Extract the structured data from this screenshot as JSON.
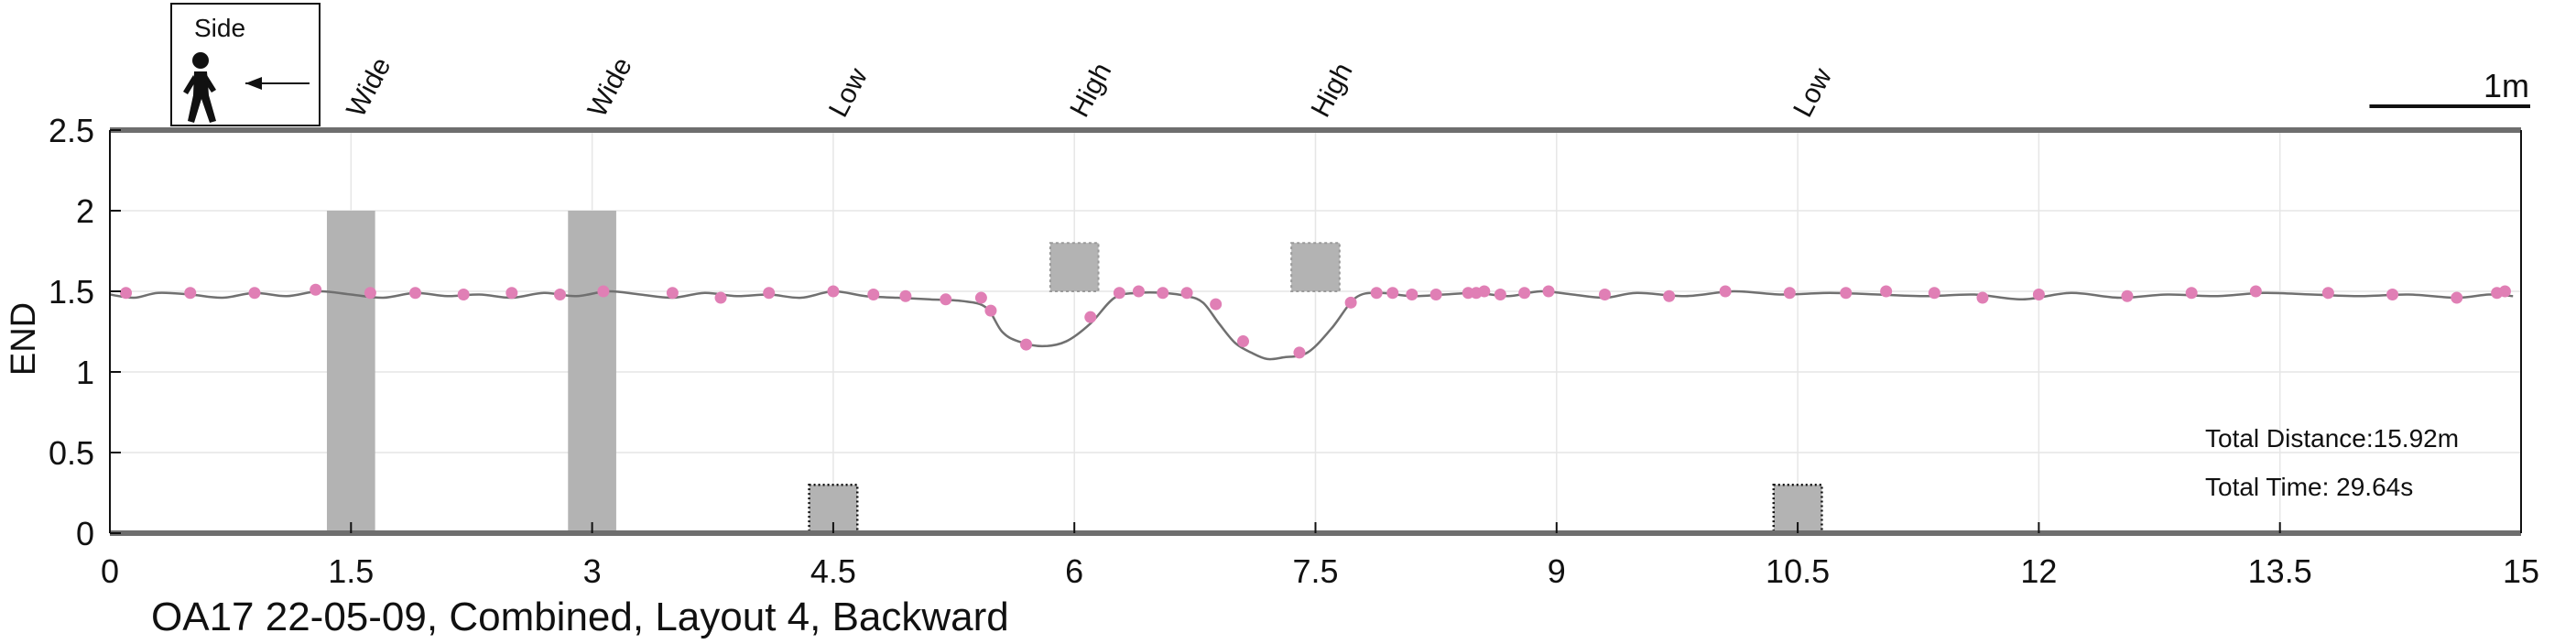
{
  "chart_data": {
    "type": "line",
    "ylabel": "END",
    "xlim": [
      0,
      15
    ],
    "ylim": [
      0,
      2.5
    ],
    "x_ticks": [
      "0",
      "1.5",
      "3",
      "4.5",
      "6",
      "7.5",
      "9",
      "10.5",
      "12",
      "13.5",
      "15"
    ],
    "y_ticks": [
      "0",
      "0.5",
      "1",
      "1.5",
      "2",
      "2.5"
    ],
    "grid": true,
    "legend": {
      "title": "Side",
      "position": "top-left",
      "icon": "walking-person-icon",
      "arrow": "left-arrow-icon"
    },
    "scale_bar": {
      "label": "1m",
      "length": 1
    },
    "obstacles": [
      {
        "label": "Wide",
        "x": [
          1.35,
          1.65
        ],
        "y": [
          0,
          2.0
        ],
        "style": "solid"
      },
      {
        "label": "Wide",
        "x": [
          2.85,
          3.15
        ],
        "y": [
          0,
          2.0
        ],
        "style": "solid"
      },
      {
        "label": "Low",
        "x": [
          4.35,
          4.65
        ],
        "y": [
          0,
          0.3
        ],
        "style": "dotted"
      },
      {
        "label": "High",
        "x": [
          5.85,
          6.15
        ],
        "y": [
          1.5,
          1.8
        ],
        "style": "dotted"
      },
      {
        "label": "High",
        "x": [
          7.35,
          7.65
        ],
        "y": [
          1.5,
          1.8
        ],
        "style": "dotted"
      },
      {
        "label": "Low",
        "x": [
          10.35,
          10.65
        ],
        "y": [
          0,
          0.3
        ],
        "style": "dotted"
      }
    ],
    "trajectory": {
      "x": [
        0,
        0.15,
        0.3,
        0.5,
        0.7,
        0.9,
        1.1,
        1.3,
        1.5,
        1.7,
        1.9,
        2.1,
        2.3,
        2.5,
        2.7,
        2.9,
        3.1,
        3.3,
        3.5,
        3.7,
        3.9,
        4.1,
        4.3,
        4.5,
        4.7,
        4.9,
        5.1,
        5.3,
        5.45,
        5.55,
        5.65,
        5.8,
        5.95,
        6.1,
        6.25,
        6.4,
        6.55,
        6.7,
        6.8,
        6.9,
        7.0,
        7.1,
        7.2,
        7.3,
        7.45,
        7.6,
        7.75,
        7.9,
        8.1,
        8.3,
        8.5,
        8.7,
        8.9,
        9.1,
        9.3,
        9.5,
        9.8,
        10.1,
        10.4,
        10.7,
        11.0,
        11.3,
        11.6,
        11.9,
        12.2,
        12.5,
        12.8,
        13.1,
        13.4,
        13.7,
        14.0,
        14.3,
        14.6,
        14.8,
        14.95
      ],
      "y": [
        1.48,
        1.46,
        1.49,
        1.48,
        1.46,
        1.49,
        1.47,
        1.5,
        1.48,
        1.46,
        1.49,
        1.47,
        1.48,
        1.46,
        1.49,
        1.47,
        1.5,
        1.48,
        1.46,
        1.49,
        1.47,
        1.48,
        1.46,
        1.5,
        1.47,
        1.46,
        1.45,
        1.44,
        1.4,
        1.25,
        1.19,
        1.16,
        1.19,
        1.3,
        1.46,
        1.49,
        1.49,
        1.47,
        1.43,
        1.3,
        1.18,
        1.12,
        1.08,
        1.09,
        1.12,
        1.27,
        1.46,
        1.49,
        1.47,
        1.48,
        1.49,
        1.47,
        1.5,
        1.48,
        1.46,
        1.49,
        1.47,
        1.5,
        1.48,
        1.49,
        1.48,
        1.47,
        1.48,
        1.45,
        1.49,
        1.46,
        1.48,
        1.47,
        1.49,
        1.48,
        1.47,
        1.48,
        1.46,
        1.48,
        1.47
      ]
    },
    "markers": {
      "x": [
        0.1,
        0.5,
        0.9,
        1.28,
        1.62,
        1.9,
        2.2,
        2.5,
        2.8,
        3.07,
        3.5,
        3.8,
        4.1,
        4.5,
        4.75,
        4.95,
        5.2,
        5.42,
        5.48,
        5.7,
        6.1,
        6.28,
        6.4,
        6.55,
        6.7,
        6.88,
        7.05,
        7.4,
        7.72,
        7.88,
        7.98,
        8.1,
        8.25,
        8.45,
        8.5,
        8.55,
        8.65,
        8.8,
        8.95,
        9.3,
        9.7,
        10.05,
        10.45,
        10.8,
        11.05,
        11.35,
        11.65,
        12.0,
        12.55,
        12.95,
        13.35,
        13.8,
        14.2,
        14.6,
        14.85,
        14.9
      ],
      "y": [
        1.49,
        1.49,
        1.49,
        1.51,
        1.49,
        1.49,
        1.48,
        1.49,
        1.48,
        1.5,
        1.49,
        1.46,
        1.49,
        1.5,
        1.48,
        1.47,
        1.45,
        1.46,
        1.38,
        1.17,
        1.34,
        1.49,
        1.5,
        1.49,
        1.49,
        1.42,
        1.19,
        1.12,
        1.43,
        1.49,
        1.49,
        1.48,
        1.48,
        1.49,
        1.49,
        1.5,
        1.48,
        1.49,
        1.5,
        1.48,
        1.47,
        1.5,
        1.49,
        1.49,
        1.5,
        1.49,
        1.46,
        1.48,
        1.47,
        1.49,
        1.5,
        1.49,
        1.48,
        1.46,
        1.49,
        1.5
      ]
    }
  },
  "caption": "OA17 22-05-09, Combined, Layout 4, Backward",
  "total_distance": "Total Distance:15.92m",
  "total_time": "Total Time: 29.64s",
  "colors": {
    "axis": "#6e6e6e",
    "grid": "#e6e6e6",
    "obstacle": "#b3b3b3",
    "trajectory": "#707070",
    "marker": "#e07fb5"
  }
}
